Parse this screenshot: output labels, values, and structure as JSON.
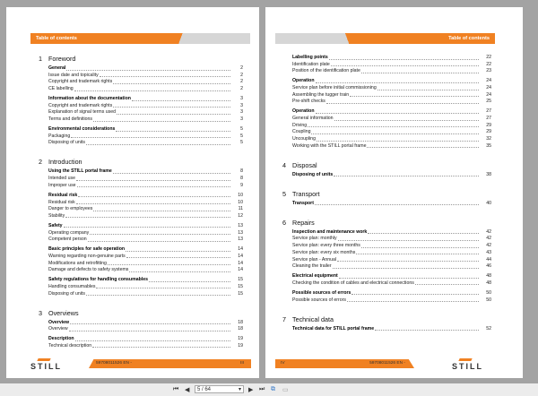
{
  "header_title": "Table of contents",
  "left": {
    "chapters": [
      {
        "num": "1",
        "title": "Foreword",
        "groups": [
          [
            [
              "General",
              "2"
            ],
            [
              "Issue date and topicality",
              "2"
            ],
            [
              "Copyright and trademark rights",
              "2"
            ],
            [
              "CE labelling",
              "2"
            ]
          ],
          [
            [
              "Information about the documentation",
              "3"
            ],
            [
              "Copyright and trademark rights",
              "3"
            ],
            [
              "Explanation of signal terms used",
              "3"
            ],
            [
              "Terms and definitions",
              "3"
            ]
          ],
          [
            [
              "Environmental considerations",
              "5"
            ],
            [
              "Packaging",
              "5"
            ],
            [
              "Disposing of units",
              "5"
            ]
          ]
        ]
      },
      {
        "num": "2",
        "title": "Introduction",
        "groups": [
          [
            [
              "Using the STILL portal frame",
              "8"
            ],
            [
              "Intended use",
              "8"
            ],
            [
              "Improper use",
              "9"
            ]
          ],
          [
            [
              "Residual risk",
              "10"
            ],
            [
              "Residual risk",
              "10"
            ],
            [
              "Danger to employees",
              "11"
            ],
            [
              "Stability",
              "12"
            ]
          ],
          [
            [
              "Safety",
              "13"
            ],
            [
              "Operating company",
              "13"
            ],
            [
              "Competent person",
              "13"
            ]
          ],
          [
            [
              "Basic principles for safe operation",
              "14"
            ],
            [
              "Warning regarding non-genuine parts",
              "14"
            ],
            [
              "Modifications and retrofitting",
              "14"
            ],
            [
              "Damage and defects to safety systems",
              "14"
            ]
          ],
          [
            [
              "Safety regulations for handling consumables",
              "15"
            ],
            [
              "Handling consumables",
              "15"
            ],
            [
              "Disposing of units",
              "15"
            ]
          ]
        ]
      },
      {
        "num": "3",
        "title": "Overviews",
        "groups": [
          [
            [
              "Overview",
              "18"
            ],
            [
              "Overview",
              "18"
            ]
          ],
          [
            [
              "Description",
              "19"
            ],
            [
              "Technical description",
              "19"
            ]
          ]
        ]
      }
    ],
    "footer_doc": "59708011526 EN -",
    "footer_page": "III"
  },
  "right": {
    "chapters": [
      {
        "num": "",
        "title": "",
        "groups": [
          [
            [
              "Labelling points",
              "22"
            ],
            [
              "Identification plate",
              "22"
            ],
            [
              "Position of the identification plate",
              "23"
            ]
          ],
          [
            [
              "Operation",
              "24"
            ],
            [
              "Service plan before initial commissioning",
              "24"
            ],
            [
              "Assembling the tugger train",
              "24"
            ],
            [
              "Pre-shift checks",
              "25"
            ]
          ],
          [
            [
              "Operation",
              "27"
            ],
            [
              "General information",
              "27"
            ],
            [
              "Driving",
              "29"
            ],
            [
              "Coupling",
              "29"
            ],
            [
              "Uncoupling",
              "32"
            ],
            [
              "Working with the STILL portal frame",
              "35"
            ]
          ]
        ]
      },
      {
        "num": "4",
        "title": "Disposal",
        "groups": [
          [
            [
              "Disposing of units",
              "38"
            ]
          ]
        ]
      },
      {
        "num": "5",
        "title": "Transport",
        "groups": [
          [
            [
              "Transport",
              "40"
            ]
          ]
        ]
      },
      {
        "num": "6",
        "title": "Repairs",
        "groups": [
          [
            [
              "Inspection and maintenance work",
              "42"
            ],
            [
              "Service plan: monthly",
              "42"
            ],
            [
              "Service plan: every three months",
              "42"
            ],
            [
              "Service plan: every six months",
              "43"
            ],
            [
              "Service plan - Annual",
              "44"
            ],
            [
              "Cleaning the trailer",
              "46"
            ]
          ],
          [
            [
              "Electrical equipment",
              "48"
            ],
            [
              "Checking the condition of cables and electrical connections",
              "48"
            ]
          ],
          [
            [
              "Possible sources of errors",
              "50"
            ],
            [
              "Possible sources of errors",
              "50"
            ]
          ]
        ]
      },
      {
        "num": "7",
        "title": "Technical data",
        "groups": [
          [
            [
              "Technical data for STILL portal frame",
              "52"
            ]
          ]
        ]
      }
    ],
    "footer_doc": "59708011526 EN -",
    "footer_page": "IV"
  },
  "logo_text": "STILL",
  "toolbar": {
    "page_field": "5 / 64",
    "icons": [
      "first-page-icon",
      "prev-page-icon",
      "next-page-icon",
      "last-page-icon",
      "two-page-view-icon",
      "single-page-icon"
    ]
  },
  "colors": {
    "accent": "#f08122",
    "header_gray": "#d6d6d6"
  }
}
